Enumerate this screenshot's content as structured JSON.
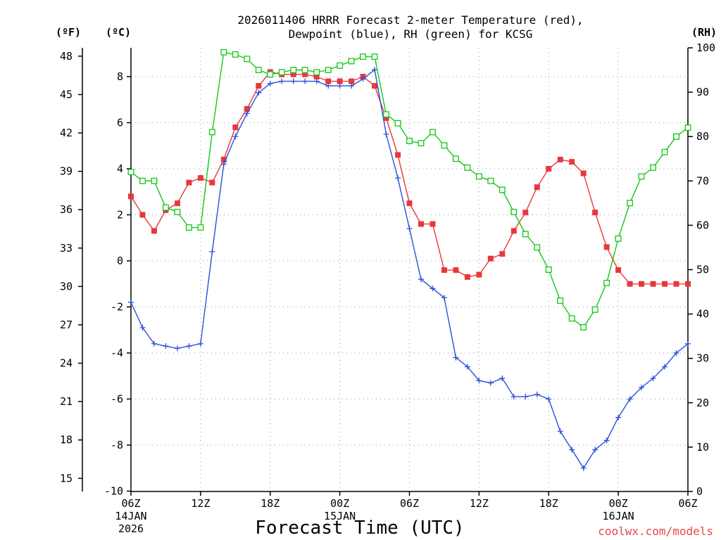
{
  "title_line1": "2026011406 HRRR Forecast 2-meter Temperature (red),",
  "title_line2": "Dewpoint (blue), RH (green) for KCSG",
  "unit_f": "(ºF)",
  "unit_c": "(ºC)",
  "unit_rh": "(RH)",
  "credit": "coolwx.com/models",
  "chart_data": {
    "type": "line",
    "title": "2026011406 HRRR Forecast 2-meter Temperature (red), Dewpoint (blue), RH (green) for KCSG",
    "xlabel": "Forecast Time (UTC)",
    "x_hours": [
      0,
      1,
      2,
      3,
      4,
      5,
      6,
      7,
      8,
      9,
      10,
      11,
      12,
      13,
      14,
      15,
      16,
      17,
      18,
      19,
      20,
      21,
      22,
      23,
      24,
      25,
      26,
      27,
      28,
      29,
      30,
      31,
      32,
      33,
      34,
      35,
      36,
      37,
      38,
      39,
      40,
      41,
      42,
      43,
      44,
      45,
      46,
      47,
      48
    ],
    "x_ticks": [
      {
        "hour": 0,
        "label": "06Z",
        "date": "14JAN",
        "year": "2026"
      },
      {
        "hour": 6,
        "label": "12Z"
      },
      {
        "hour": 12,
        "label": "18Z"
      },
      {
        "hour": 18,
        "label": "00Z",
        "date": "15JAN"
      },
      {
        "hour": 24,
        "label": "06Z"
      },
      {
        "hour": 30,
        "label": "12Z"
      },
      {
        "hour": 36,
        "label": "18Z"
      },
      {
        "hour": 42,
        "label": "00Z",
        "date": "16JAN"
      },
      {
        "hour": 48,
        "label": "06Z"
      }
    ],
    "y_left_c": {
      "label": "(ºC)",
      "range": [
        -10,
        9.4
      ],
      "ticks": [
        "-10",
        "-8",
        "-6",
        "-4",
        "-2",
        "0",
        "2",
        "4",
        "6",
        "8"
      ]
    },
    "y_left_f": {
      "label": "(ºF)",
      "ticks": [
        "15",
        "18",
        "21",
        "24",
        "27",
        "30",
        "33",
        "36",
        "39",
        "42",
        "45",
        "48"
      ]
    },
    "y_right_rh": {
      "label": "(RH)",
      "range": [
        0,
        100
      ],
      "ticks": [
        "0",
        "10",
        "20",
        "30",
        "40",
        "50",
        "60",
        "70",
        "80",
        "90",
        "100"
      ]
    },
    "grid": true,
    "series": [
      {
        "name": "Temperature",
        "color": "#e8383c",
        "marker": "filled-square",
        "axis": "C",
        "values": [
          2.8,
          2.0,
          1.3,
          2.2,
          2.5,
          3.4,
          3.6,
          3.4,
          4.4,
          5.8,
          6.6,
          7.6,
          8.2,
          8.1,
          8.1,
          8.1,
          8.0,
          7.8,
          7.8,
          7.8,
          8.0,
          7.6,
          6.2,
          4.6,
          2.5,
          1.6,
          1.6,
          -0.4,
          -0.4,
          -0.7,
          -0.6,
          0.1,
          0.3,
          1.3,
          2.1,
          3.2,
          4.0,
          4.4,
          4.3,
          3.8,
          2.1,
          0.6,
          -0.4,
          -1.0,
          -1.0,
          -1.0,
          -1.0,
          -1.0,
          -1.0
        ]
      },
      {
        "name": "Dewpoint",
        "color": "#2a4fd8",
        "marker": "plus",
        "axis": "C",
        "values": [
          -1.8,
          -2.9,
          -3.6,
          -3.7,
          -3.8,
          -3.7,
          -3.6,
          0.4,
          4.2,
          5.4,
          6.4,
          7.3,
          7.7,
          7.8,
          7.8,
          7.8,
          7.8,
          7.6,
          7.6,
          7.6,
          7.9,
          8.3,
          5.5,
          3.6,
          1.4,
          -0.8,
          -1.2,
          -1.6,
          -4.2,
          -4.6,
          -5.2,
          -5.3,
          -5.1,
          -5.9,
          -5.9,
          -5.8,
          -6.0,
          -7.4,
          -8.2,
          -9.0,
          -8.2,
          -7.8,
          -6.8,
          -6.0,
          -5.5,
          -5.1,
          -4.6,
          -4.0,
          -3.6
        ]
      },
      {
        "name": "RH",
        "color": "#12c818",
        "marker": "open-square",
        "axis": "RH",
        "values": [
          72,
          70,
          70,
          64,
          63,
          59.5,
          59.5,
          81,
          99,
          98.5,
          97.5,
          95,
          94,
          94.5,
          95,
          95,
          94.5,
          95,
          96,
          97,
          98,
          98,
          85,
          83,
          79,
          78.5,
          81,
          78,
          75,
          73,
          71,
          70,
          68,
          63,
          58,
          55,
          50,
          43,
          39,
          37,
          41,
          47,
          57,
          65,
          71,
          73,
          76.5,
          80,
          82
        ]
      }
    ]
  }
}
